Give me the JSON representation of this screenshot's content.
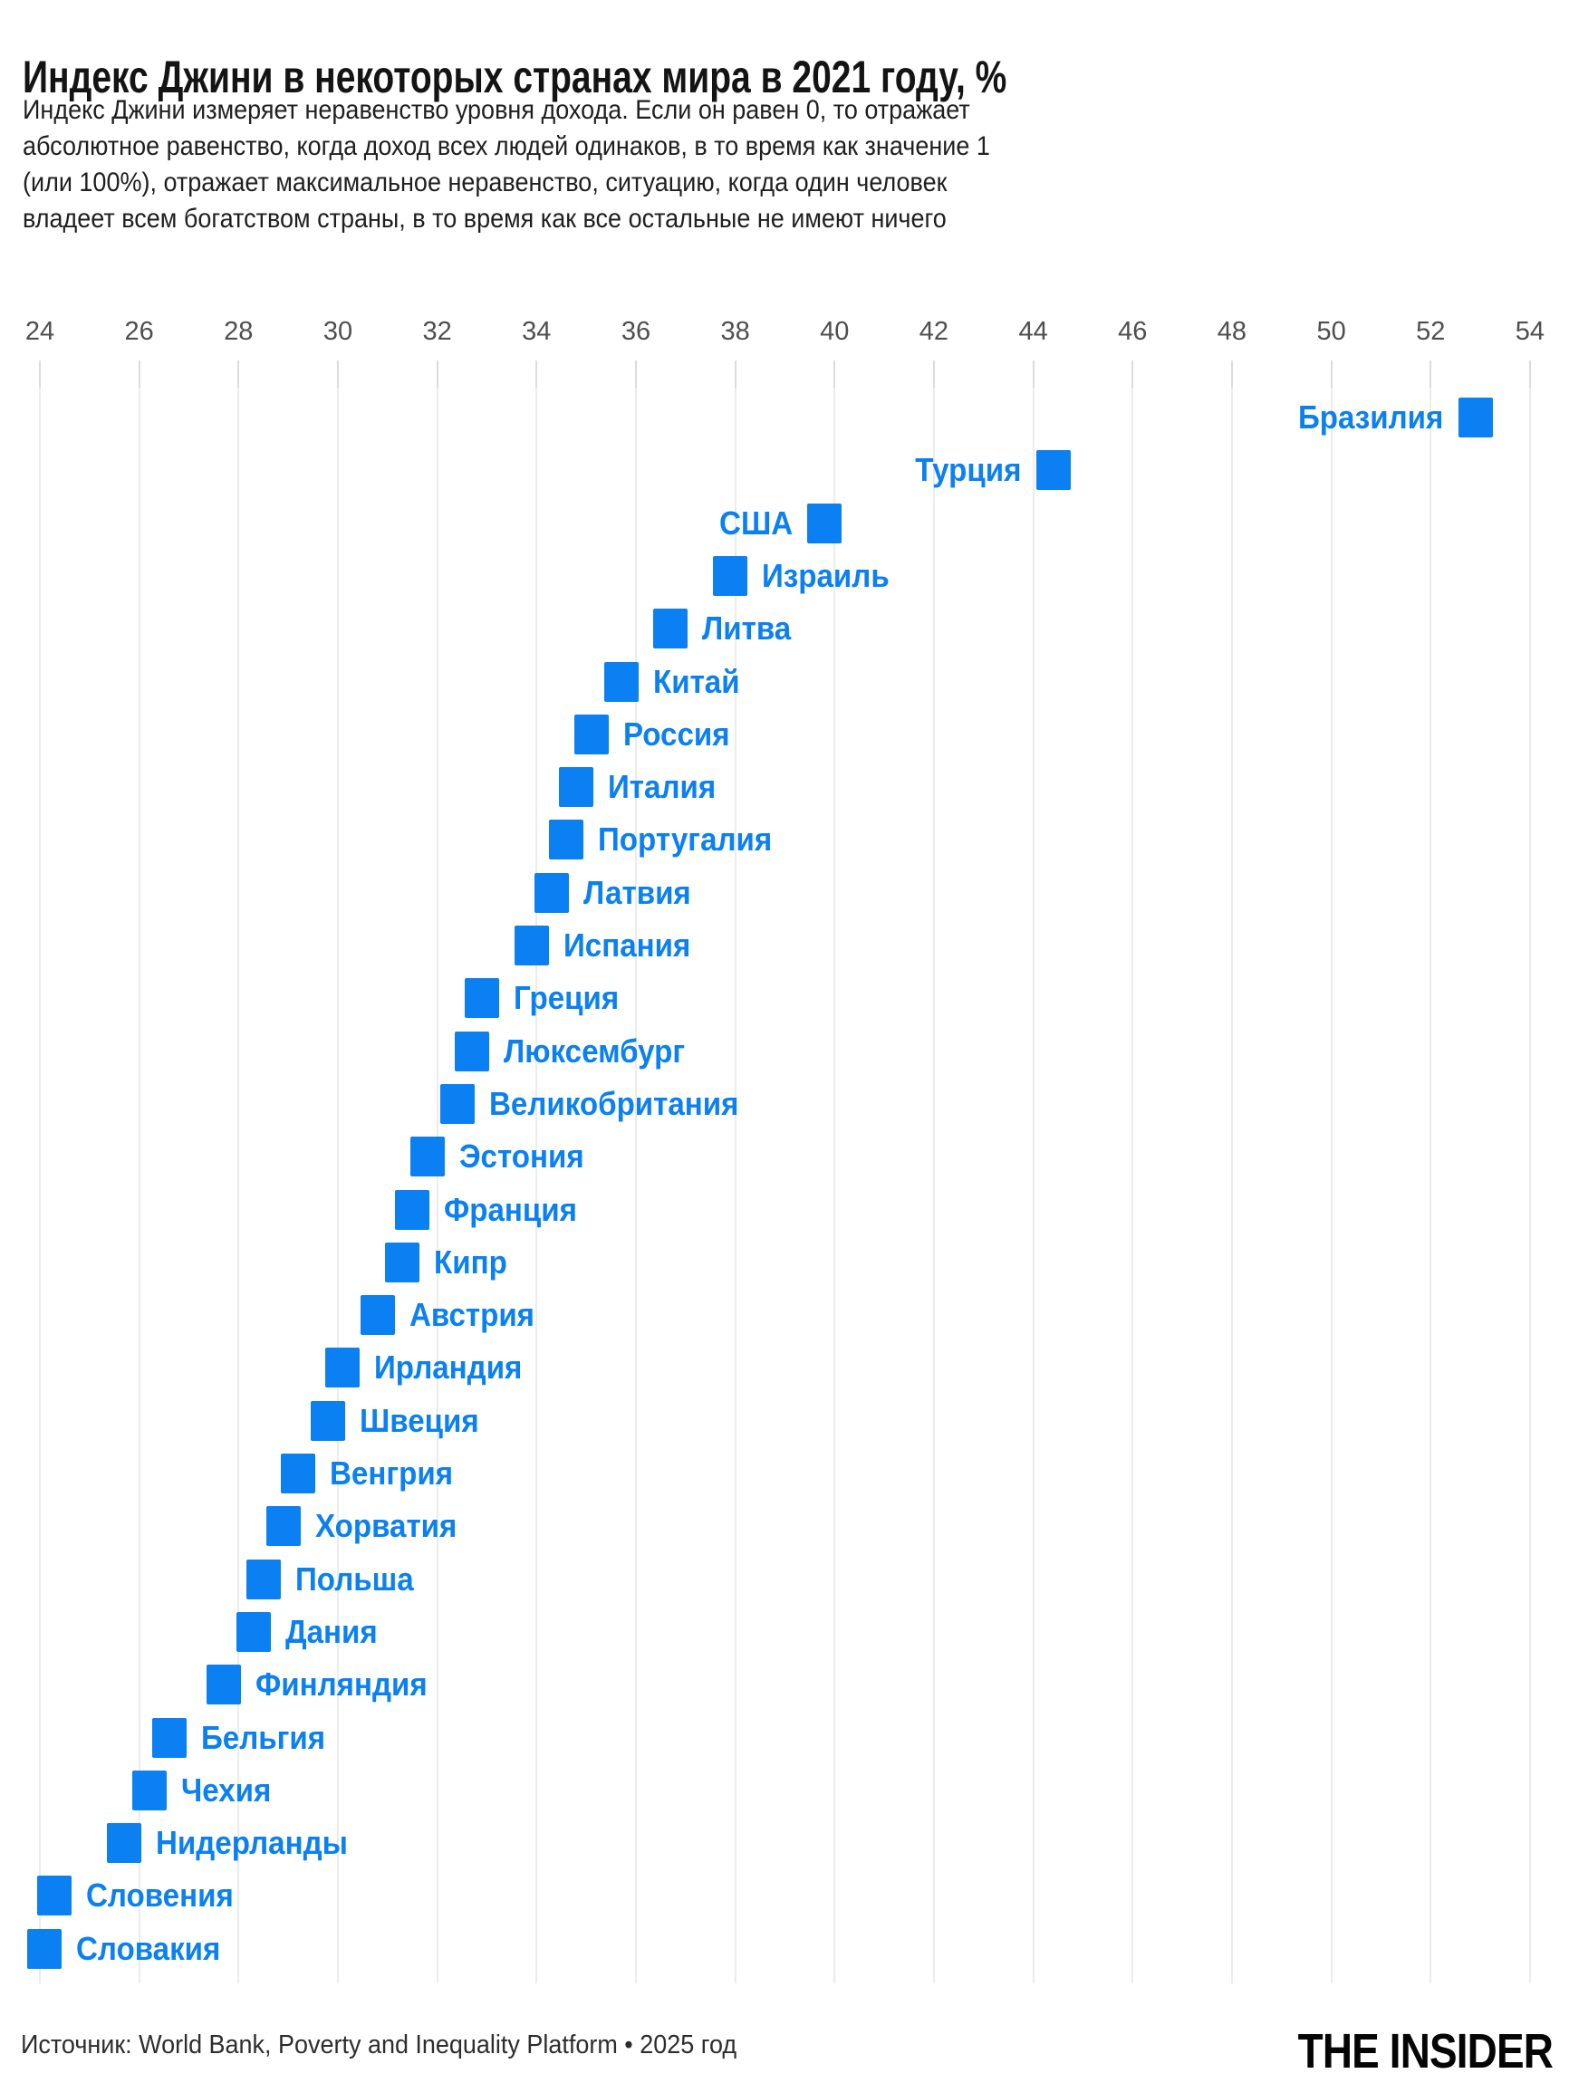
{
  "header": {
    "title": "Индекс Джини в некоторых странах мира в 2021 году, %",
    "subtitle_lines": [
      "Индекс Джини измеряет неравенство уровня дохода. Если он равен 0, то отражает",
      "абсолютное равенство, когда доход всех людей одинаков, в то время как значение 1",
      "(или 100%), отражает максимальное неравенство, ситуацию, когда один человек",
      "владеет всем богатством страны, в то время как все остальные не имеют ничего"
    ]
  },
  "chart_data": {
    "type": "scatter",
    "title": "Индекс Джини в некоторых странах мира в 2021 году, %",
    "unit": "%",
    "xlim": [
      24,
      54
    ],
    "ticks": [
      24,
      26,
      28,
      30,
      32,
      34,
      36,
      38,
      40,
      42,
      44,
      46,
      48,
      50,
      52,
      54
    ],
    "grid": "vertical",
    "marker_color": "#0b80f2",
    "points": [
      {
        "label": "Бразилия",
        "value": 52.9,
        "label_side": "left"
      },
      {
        "label": "Турция",
        "value": 44.4,
        "label_side": "left"
      },
      {
        "label": "США",
        "value": 39.8,
        "label_side": "left"
      },
      {
        "label": "Израиль",
        "value": 37.9,
        "label_side": "right"
      },
      {
        "label": "Литва",
        "value": 36.7,
        "label_side": "right"
      },
      {
        "label": "Китай",
        "value": 35.7,
        "label_side": "right"
      },
      {
        "label": "Россия",
        "value": 35.1,
        "label_side": "right"
      },
      {
        "label": "Италия",
        "value": 34.8,
        "label_side": "right"
      },
      {
        "label": "Португалия",
        "value": 34.6,
        "label_side": "right"
      },
      {
        "label": "Латвия",
        "value": 34.3,
        "label_side": "right"
      },
      {
        "label": "Испания",
        "value": 33.9,
        "label_side": "right"
      },
      {
        "label": "Греция",
        "value": 32.9,
        "label_side": "right"
      },
      {
        "label": "Люксембург",
        "value": 32.7,
        "label_side": "right"
      },
      {
        "label": "Великобритания",
        "value": 32.4,
        "label_side": "right"
      },
      {
        "label": "Эстония",
        "value": 31.8,
        "label_side": "right"
      },
      {
        "label": "Франция",
        "value": 31.5,
        "label_side": "right"
      },
      {
        "label": "Кипр",
        "value": 31.3,
        "label_side": "right"
      },
      {
        "label": "Австрия",
        "value": 30.8,
        "label_side": "right"
      },
      {
        "label": "Ирландия",
        "value": 30.1,
        "label_side": "right"
      },
      {
        "label": "Швеция",
        "value": 29.8,
        "label_side": "right"
      },
      {
        "label": "Венгрия",
        "value": 29.2,
        "label_side": "right"
      },
      {
        "label": "Хорватия",
        "value": 28.9,
        "label_side": "right"
      },
      {
        "label": "Польша",
        "value": 28.5,
        "label_side": "right"
      },
      {
        "label": "Дания",
        "value": 28.3,
        "label_side": "right"
      },
      {
        "label": "Финляндия",
        "value": 27.7,
        "label_side": "right"
      },
      {
        "label": "Бельгия",
        "value": 26.6,
        "label_side": "right"
      },
      {
        "label": "Чехия",
        "value": 26.2,
        "label_side": "right"
      },
      {
        "label": "Нидерланды",
        "value": 25.7,
        "label_side": "right"
      },
      {
        "label": "Словения",
        "value": 24.3,
        "label_side": "right"
      },
      {
        "label": "Словакия",
        "value": 24.1,
        "label_side": "right"
      }
    ]
  },
  "footer": {
    "source": "Источник: World Bank, Poverty and Inequality Platform • 2025 год",
    "brand": "THE INSIDER"
  },
  "colors": {
    "accent": "#0b80f2",
    "title": "#141414",
    "text": "#1f1f1f",
    "axis": "#4f4f4f",
    "grid": "#ececec",
    "tick": "#dcdcdc",
    "background": "#ffffff",
    "footer": "#2d2d2d",
    "brand": "#050505"
  }
}
